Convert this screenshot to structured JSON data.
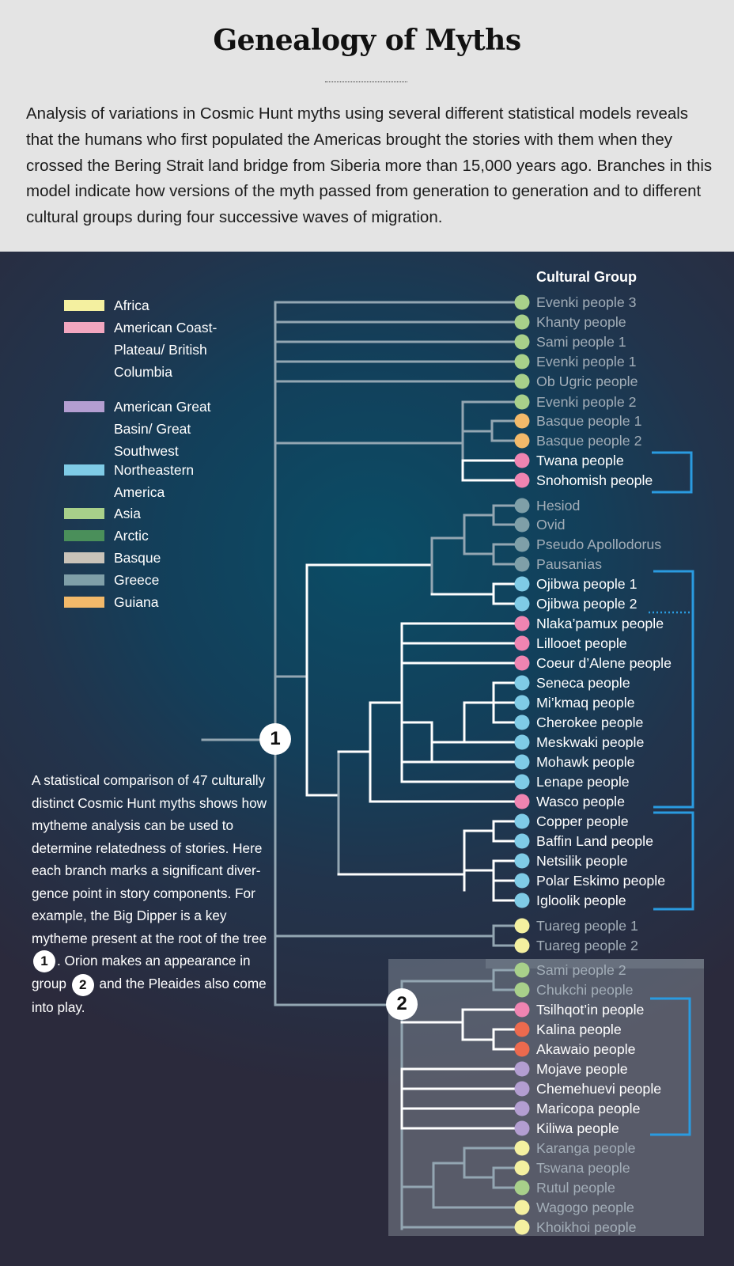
{
  "title": "Genealogy of Myths",
  "intro": "Analysis of variations in Cosmic Hunt myths using several different statistical models reveals that the humans who first populated the Americas brought the stories with them when they crossed the Bering Strait land bridge from Siberia more than 15,000 years ago. Branches in this model indicate how versions of the myth passed from generation to generation and to different cultural groups during four successive waves of migration.",
  "legend": [
    {
      "label": "Africa",
      "color": "#f4f0a0"
    },
    {
      "label": "American Coast-Plateau/ British Columbia",
      "color": "#f2a6bf"
    },
    {
      "label": "American Great Basin/ Great Southwest",
      "color": "#b39ed1"
    },
    {
      "label": "Northeastern America",
      "color": "#7fcbe6"
    },
    {
      "label": "Asia",
      "color": "#a8d08a"
    },
    {
      "label": "Arctic",
      "color": "#4a8f5a"
    },
    {
      "label": "Basque",
      "color": "#c9c3b9"
    },
    {
      "label": "Greece",
      "color": "#7f9fa8"
    },
    {
      "label": "Guiana",
      "color": "#f2b96a"
    }
  ],
  "column_header": "Cultural Group",
  "colors": {
    "africa": "#f4f0a0",
    "coast": "#ef84b1",
    "basin": "#b39ed1",
    "northeast": "#7fcbe6",
    "asia": "#a8d08a",
    "guiana": "#f2b96a",
    "greece": "#7f9fa8",
    "orange_red": "#ec6a4e",
    "bracket": "#2a9be0"
  },
  "leaves": [
    {
      "label": "Evenki people 3",
      "dot": "asia",
      "tone": "grey"
    },
    {
      "label": "Khanty people",
      "dot": "asia",
      "tone": "grey"
    },
    {
      "label": "Sami people 1",
      "dot": "asia",
      "tone": "grey"
    },
    {
      "label": "Evenki people 1",
      "dot": "asia",
      "tone": "grey"
    },
    {
      "label": "Ob Ugric people",
      "dot": "asia",
      "tone": "grey"
    },
    {
      "label": "Evenki people 2",
      "dot": "asia",
      "tone": "grey"
    },
    {
      "label": "Basque people 1",
      "dot": "guiana",
      "tone": "grey"
    },
    {
      "label": "Basque people 2",
      "dot": "guiana",
      "tone": "grey"
    },
    {
      "label": "Twana people",
      "dot": "coast",
      "tone": "white"
    },
    {
      "label": "Snohomish people",
      "dot": "coast",
      "tone": "white"
    },
    {
      "label": "Hesiod",
      "dot": "greece",
      "tone": "grey"
    },
    {
      "label": "Ovid",
      "dot": "greece",
      "tone": "grey"
    },
    {
      "label": "Pseudo Apollodorus",
      "dot": "greece",
      "tone": "grey"
    },
    {
      "label": "Pausanias",
      "dot": "greece",
      "tone": "grey"
    },
    {
      "label": "Ojibwa people 1",
      "dot": "northeast",
      "tone": "white"
    },
    {
      "label": "Ojibwa people 2",
      "dot": "northeast",
      "tone": "white"
    },
    {
      "label": "Nlaka’pamux people",
      "dot": "coast",
      "tone": "white"
    },
    {
      "label": "Lillooet people",
      "dot": "coast",
      "tone": "white"
    },
    {
      "label": "Coeur d’Alene people",
      "dot": "coast",
      "tone": "white"
    },
    {
      "label": "Seneca people",
      "dot": "northeast",
      "tone": "white"
    },
    {
      "label": "Mi’kmaq people",
      "dot": "northeast",
      "tone": "white"
    },
    {
      "label": "Cherokee people",
      "dot": "northeast",
      "tone": "white"
    },
    {
      "label": "Meskwaki people",
      "dot": "northeast",
      "tone": "white"
    },
    {
      "label": "Mohawk people",
      "dot": "northeast",
      "tone": "white"
    },
    {
      "label": "Lenape people",
      "dot": "northeast",
      "tone": "white"
    },
    {
      "label": "Wasco people",
      "dot": "coast",
      "tone": "white"
    },
    {
      "label": "Copper people",
      "dot": "northeast",
      "tone": "white"
    },
    {
      "label": "Baffin Land people",
      "dot": "northeast",
      "tone": "white"
    },
    {
      "label": "Netsilik people",
      "dot": "northeast",
      "tone": "white"
    },
    {
      "label": "Polar Eskimo people",
      "dot": "northeast",
      "tone": "white"
    },
    {
      "label": "Igloolik people",
      "dot": "northeast",
      "tone": "white"
    },
    {
      "label": "Tuareg people 1",
      "dot": "africa",
      "tone": "grey"
    },
    {
      "label": "Tuareg people 2",
      "dot": "africa",
      "tone": "grey"
    },
    {
      "label": "Sami people 2",
      "dot": "asia",
      "tone": "grey"
    },
    {
      "label": "Chukchi people",
      "dot": "asia",
      "tone": "grey"
    },
    {
      "label": "Tsilhqot’in people",
      "dot": "coast",
      "tone": "white"
    },
    {
      "label": "Kalina people",
      "dot": "orange_red",
      "tone": "white"
    },
    {
      "label": "Akawaio people",
      "dot": "orange_red",
      "tone": "white"
    },
    {
      "label": "Mojave people",
      "dot": "basin",
      "tone": "white"
    },
    {
      "label": "Chemehuevi people",
      "dot": "basin",
      "tone": "white"
    },
    {
      "label": "Maricopa people",
      "dot": "basin",
      "tone": "white"
    },
    {
      "label": "Kiliwa people",
      "dot": "basin",
      "tone": "white"
    },
    {
      "label": "Karanga people",
      "dot": "africa",
      "tone": "grey"
    },
    {
      "label": "Tswana people",
      "dot": "africa",
      "tone": "grey"
    },
    {
      "label": "Rutul people",
      "dot": "asia",
      "tone": "grey"
    },
    {
      "label": "Wagogo people",
      "dot": "africa",
      "tone": "grey"
    },
    {
      "label": "Khoikhoi people",
      "dot": "africa",
      "tone": "grey"
    }
  ],
  "note": {
    "part1": "A statistical comparison of 47 culturally distinct Cosmic Hunt myths shows how mytheme analysis can be used to determine relatedness of stories. Here each branch marks a significant diver-gence point in story components. For example, the Big Dipper is a key mytheme present at the root of the tree",
    "part2": ". Orion makes an appearance in group",
    "part3": "and the Pleaides also come into play."
  },
  "badges": {
    "one": "1",
    "two": "2"
  }
}
